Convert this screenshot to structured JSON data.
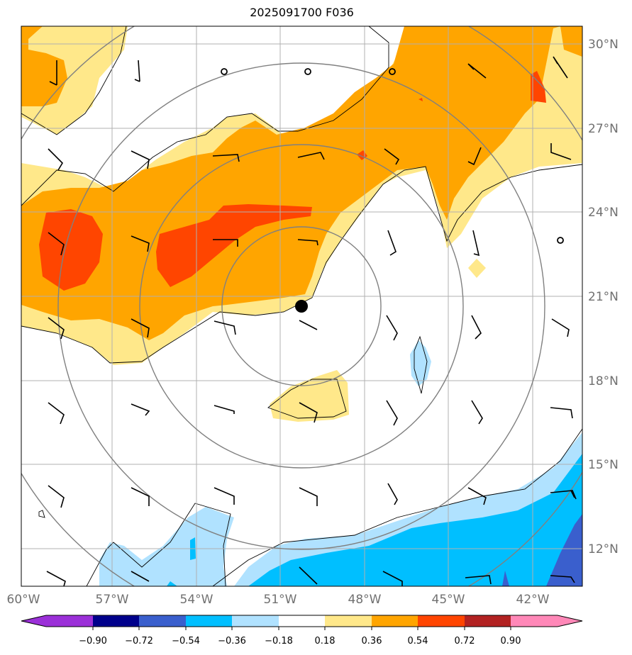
{
  "title": "2025091700 F036",
  "map": {
    "lon_labels": [
      "60°W",
      "57°W",
      "54°W",
      "51°W",
      "48°W",
      "45°W",
      "42°W"
    ],
    "lat_labels": [
      "30°N",
      "27°N",
      "24°N",
      "21°N",
      "18°N",
      "15°N",
      "12°N"
    ],
    "grid": true,
    "center_marker": "storm-center-dot",
    "range_rings": 4
  },
  "colorbar": {
    "tick_labels": [
      "−0.90",
      "−0.72",
      "−0.54",
      "−0.36",
      "−0.18",
      "0.18",
      "0.36",
      "0.54",
      "0.72",
      "0.90"
    ],
    "colors": [
      "#9b30d8",
      "#00008b",
      "#3a5fcd",
      "#00bfff",
      "#b0e2ff",
      "#ffffff",
      "#ffe88a",
      "#ffa500",
      "#ff4500",
      "#b22222",
      "#ff88b8"
    ],
    "extend": "both"
  }
}
